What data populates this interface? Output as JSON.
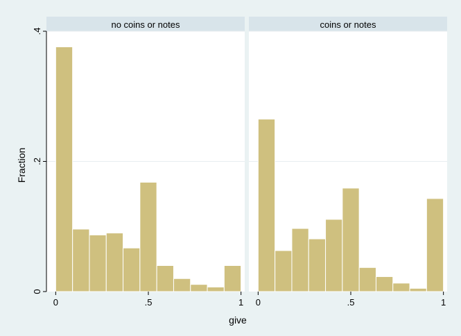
{
  "chart_data": {
    "type": "bar",
    "ylabel": "Fraction",
    "xlabel": "give",
    "xlim": [
      -0.05,
      1.02
    ],
    "ylim": [
      0,
      0.4
    ],
    "x_ticks": [
      0,
      0.5,
      1
    ],
    "x_tick_labels": [
      "0",
      ".5",
      "1"
    ],
    "y_ticks": [
      0,
      0.2,
      0.4
    ],
    "y_tick_labels": [
      "0",
      ".2",
      ".4"
    ],
    "bin_width": 0.0909,
    "bin_starts": [
      0,
      0.0909,
      0.1818,
      0.2727,
      0.3636,
      0.4545,
      0.5455,
      0.6364,
      0.7273,
      0.8182,
      0.9091
    ],
    "grid": true,
    "colors": {
      "outer_background": "#eaf2f3",
      "panel_background": "#ffffff",
      "strip_background": "#d8e4ea",
      "bar_fill": "#cfc07f",
      "bar_outline": "#ffffff",
      "grid": "#e8eef0"
    },
    "panels": [
      {
        "title": "no coins or notes",
        "values": [
          0.376,
          0.096,
          0.087,
          0.09,
          0.067,
          0.168,
          0.04,
          0.02,
          0.011,
          0.007,
          0.04
        ]
      },
      {
        "title": "coins or notes",
        "values": [
          0.265,
          0.063,
          0.097,
          0.081,
          0.111,
          0.159,
          0.037,
          0.023,
          0.013,
          0.005,
          0.143
        ]
      }
    ]
  }
}
